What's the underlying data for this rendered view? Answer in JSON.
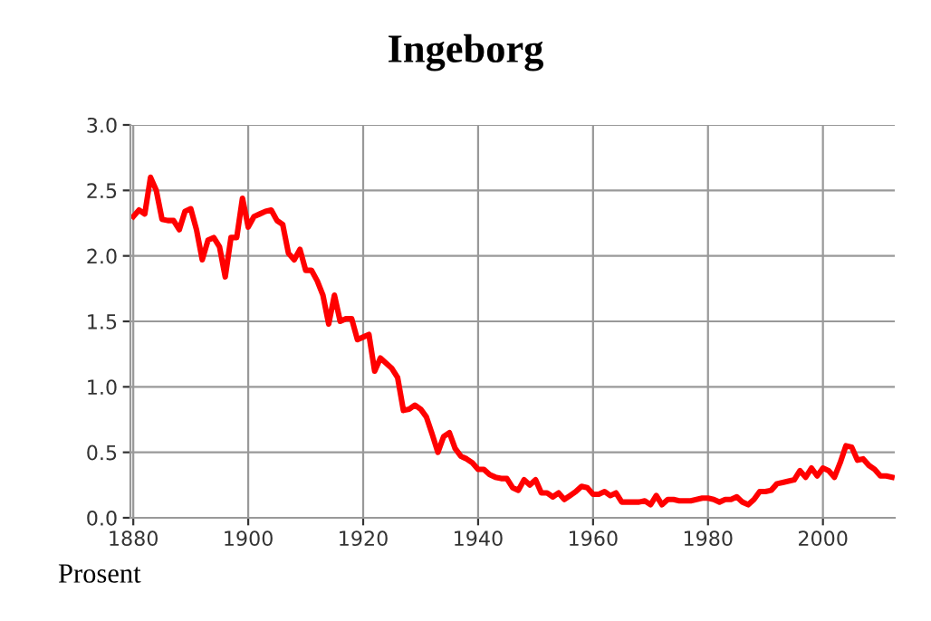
{
  "chart_data": {
    "type": "line",
    "title": "Ingeborg",
    "ylabel": "Prosent",
    "x": [
      1880,
      1881,
      1882,
      1883,
      1884,
      1885,
      1886,
      1887,
      1888,
      1889,
      1890,
      1891,
      1892,
      1893,
      1894,
      1895,
      1896,
      1897,
      1898,
      1899,
      1900,
      1901,
      1902,
      1903,
      1904,
      1905,
      1906,
      1907,
      1908,
      1909,
      1910,
      1911,
      1912,
      1913,
      1914,
      1915,
      1916,
      1917,
      1918,
      1919,
      1920,
      1921,
      1922,
      1923,
      1924,
      1925,
      1926,
      1927,
      1928,
      1929,
      1930,
      1931,
      1932,
      1933,
      1934,
      1935,
      1936,
      1937,
      1938,
      1939,
      1940,
      1941,
      1942,
      1943,
      1944,
      1945,
      1946,
      1947,
      1948,
      1949,
      1950,
      1951,
      1952,
      1953,
      1954,
      1955,
      1956,
      1957,
      1958,
      1959,
      1960,
      1961,
      1962,
      1963,
      1964,
      1965,
      1966,
      1967,
      1968,
      1969,
      1970,
      1971,
      1972,
      1973,
      1974,
      1975,
      1976,
      1977,
      1978,
      1979,
      1980,
      1981,
      1982,
      1983,
      1984,
      1985,
      1986,
      1987,
      1988,
      1989,
      1990,
      1991,
      1992,
      1993,
      1994,
      1995,
      1996,
      1997,
      1998,
      1999,
      2000,
      2001,
      2002,
      2003,
      2004,
      2005,
      2006,
      2007,
      2008,
      2009,
      2010,
      2011,
      2012
    ],
    "series": [
      {
        "color": "#ff0000",
        "values": [
          2.3,
          2.35,
          2.32,
          2.6,
          2.5,
          2.28,
          2.27,
          2.27,
          2.2,
          2.34,
          2.36,
          2.2,
          1.97,
          2.12,
          2.14,
          2.07,
          1.84,
          2.14,
          2.14,
          2.44,
          2.22,
          2.3,
          2.32,
          2.34,
          2.35,
          2.27,
          2.24,
          2.02,
          1.97,
          2.05,
          1.89,
          1.89,
          1.81,
          1.7,
          1.48,
          1.7,
          1.5,
          1.52,
          1.52,
          1.36,
          1.38,
          1.4,
          1.12,
          1.22,
          1.18,
          1.14,
          1.07,
          0.82,
          0.83,
          0.86,
          0.83,
          0.77,
          0.64,
          0.5,
          0.62,
          0.65,
          0.53,
          0.47,
          0.45,
          0.42,
          0.37,
          0.37,
          0.33,
          0.31,
          0.3,
          0.3,
          0.23,
          0.21,
          0.29,
          0.25,
          0.29,
          0.19,
          0.19,
          0.16,
          0.19,
          0.14,
          0.17,
          0.2,
          0.24,
          0.23,
          0.18,
          0.18,
          0.2,
          0.17,
          0.19,
          0.12,
          0.12,
          0.12,
          0.12,
          0.13,
          0.1,
          0.17,
          0.1,
          0.14,
          0.14,
          0.13,
          0.13,
          0.13,
          0.14,
          0.15,
          0.15,
          0.14,
          0.12,
          0.14,
          0.14,
          0.16,
          0.12,
          0.1,
          0.14,
          0.2,
          0.2,
          0.21,
          0.26,
          0.27,
          0.28,
          0.29,
          0.36,
          0.31,
          0.38,
          0.32,
          0.38,
          0.36,
          0.31,
          0.42,
          0.55,
          0.54,
          0.44,
          0.45,
          0.4,
          0.37,
          0.32,
          0.32,
          0.31
        ]
      }
    ],
    "xlim": [
      1879.5,
      2012.5
    ],
    "ylim": [
      0,
      3.0
    ],
    "xticks": [
      1880,
      1900,
      1920,
      1940,
      1960,
      1980,
      2000
    ],
    "yticks": [
      {
        "value": 0,
        "label": "0.0"
      },
      {
        "value": 0.5,
        "label": "0.5"
      },
      {
        "value": 1.0,
        "label": "1.0"
      },
      {
        "value": 1.5,
        "label": "1.5"
      },
      {
        "value": 2.0,
        "label": "2.0"
      },
      {
        "value": 2.5,
        "label": "2.5"
      },
      {
        "value": 3.0,
        "label": "3.0"
      }
    ],
    "grid": true,
    "marker": "none",
    "line_style": "solid",
    "legend": false
  }
}
